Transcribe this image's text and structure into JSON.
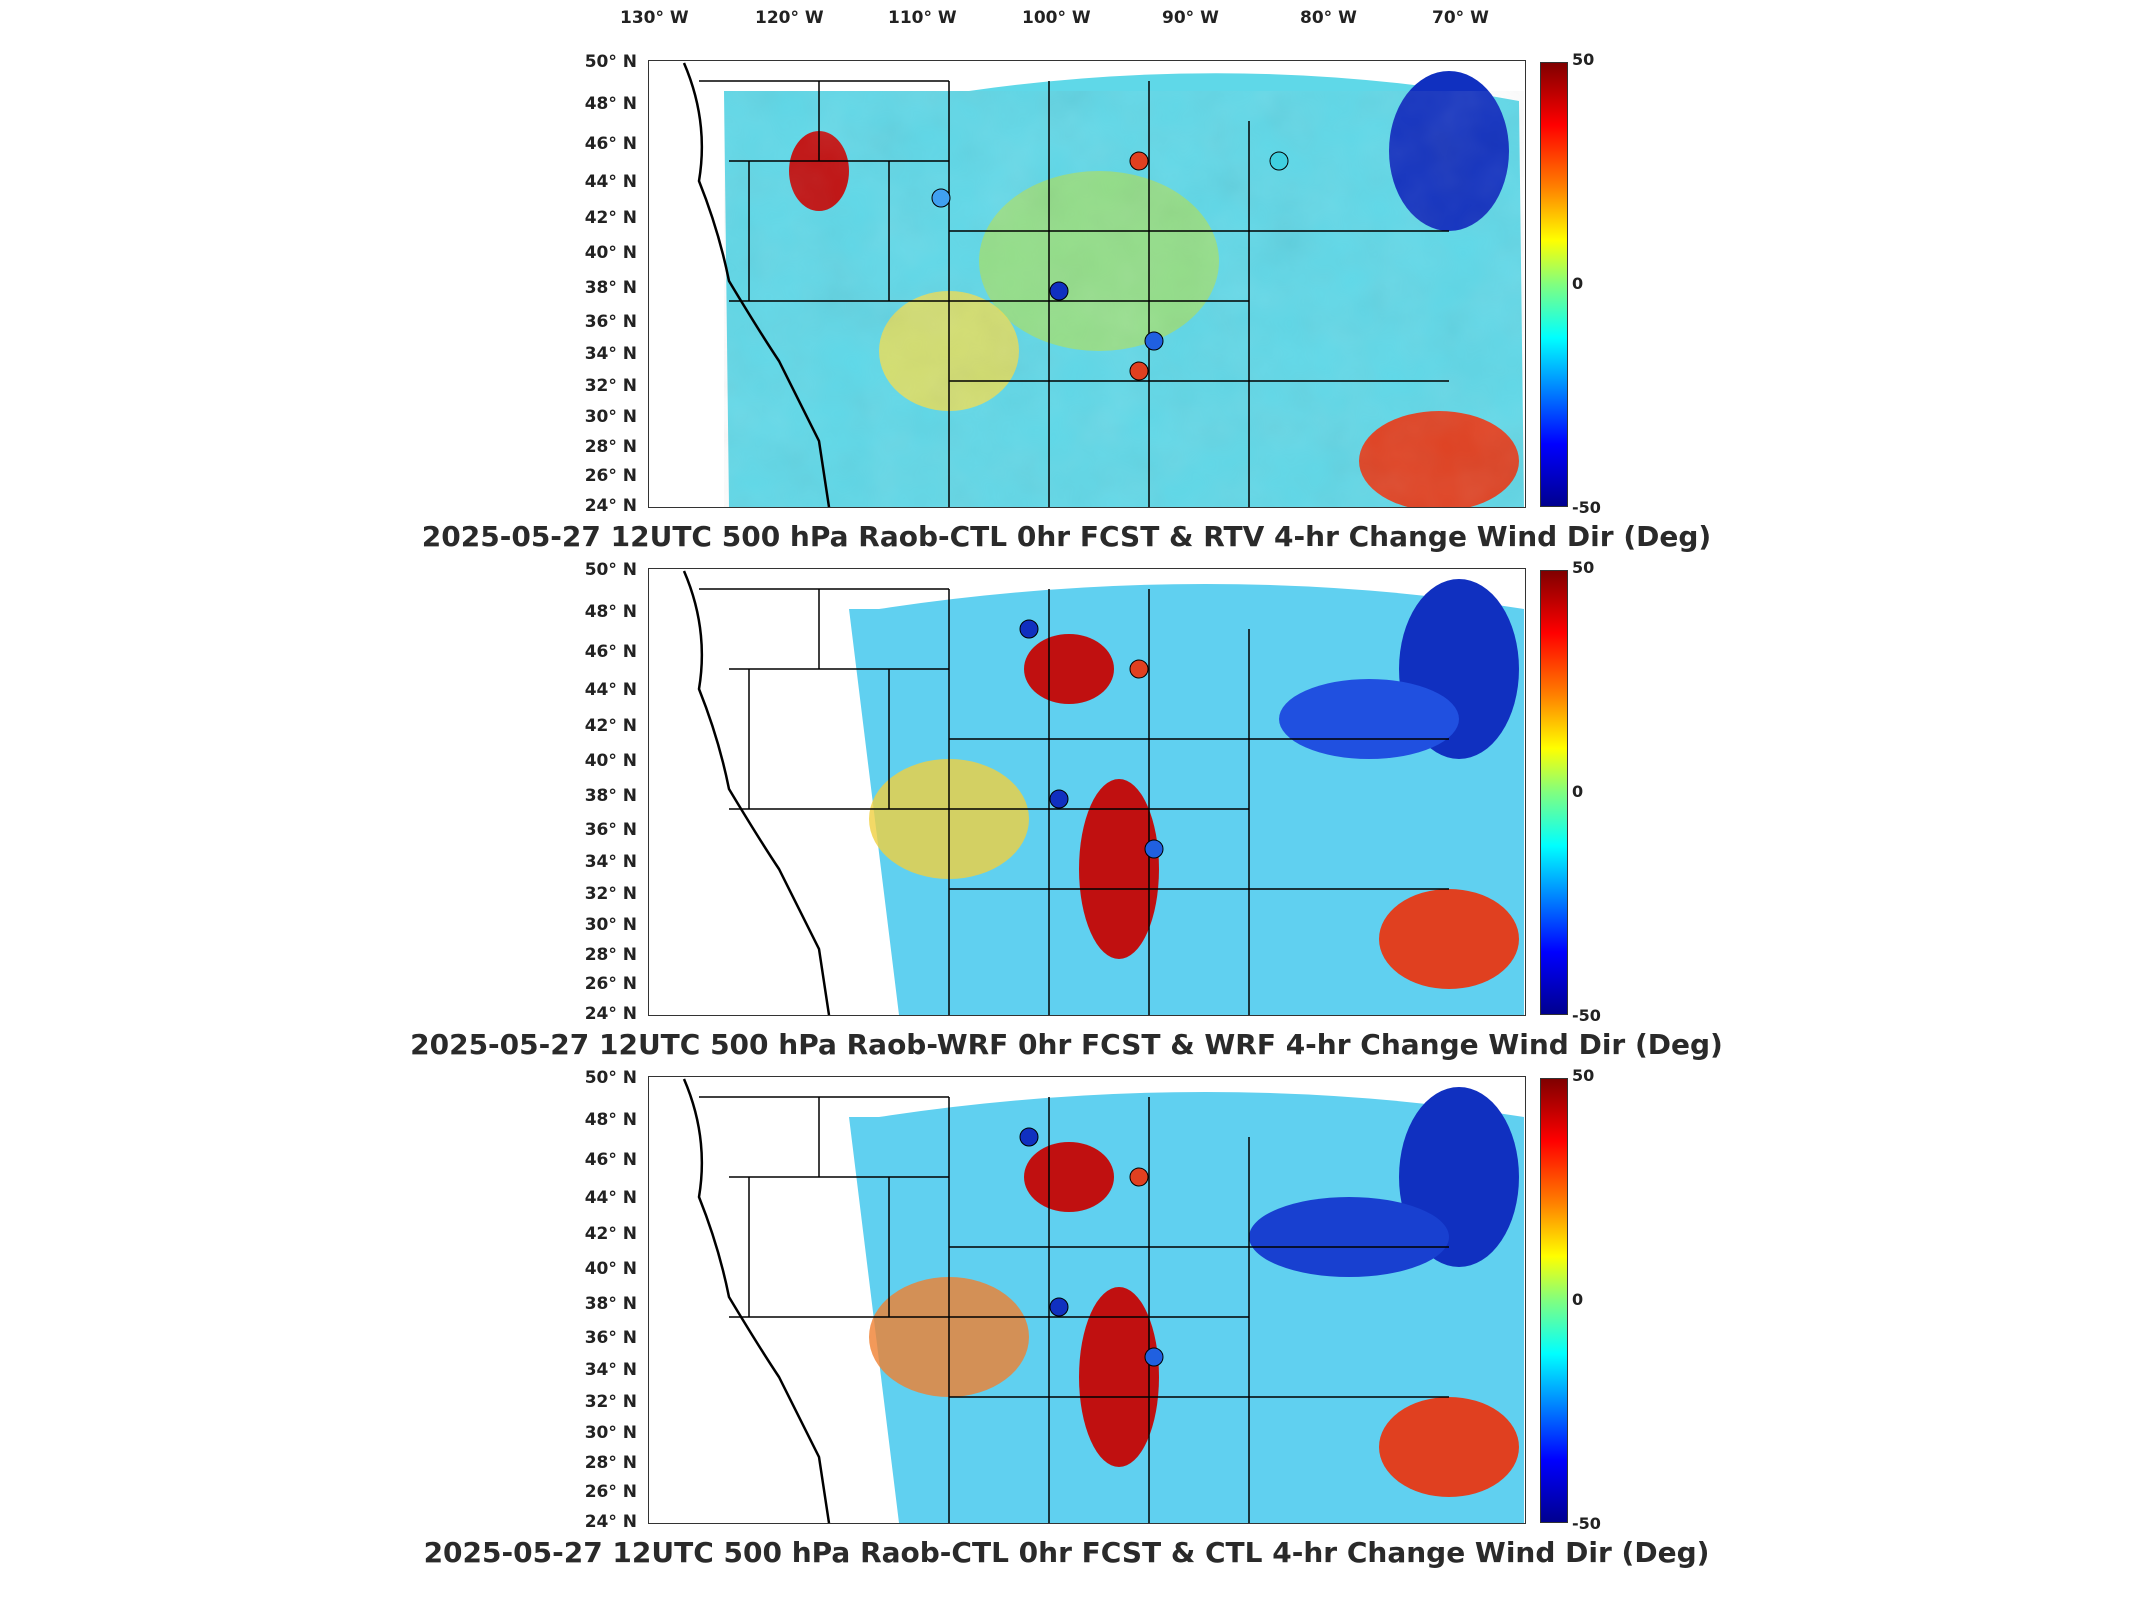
{
  "lon_ticks": [
    "130° W",
    "120° W",
    "110° W",
    "100° W",
    "90° W",
    "80° W",
    "70° W"
  ],
  "lat_ticks": [
    "50° N",
    "48° N",
    "46° N",
    "44° N",
    "42° N",
    "40° N",
    "38° N",
    "36° N",
    "34° N",
    "32° N",
    "30° N",
    "28° N",
    "26° N",
    "24° N"
  ],
  "colorbar": {
    "max": "50",
    "mid": "0",
    "min": "-50"
  },
  "panels": [
    {
      "title": "2025-05-27 12UTC 500 hPa Raob-CTL 0hr FCST & RTV 4-hr Change Wind Dir (Deg)"
    },
    {
      "title": "2025-05-27 12UTC 500 hPa Raob-WRF 0hr FCST & WRF 4-hr Change Wind Dir (Deg)"
    },
    {
      "title": "2025-05-27 12UTC 500 hPa Raob-CTL 0hr FCST & CTL 4-hr Change Wind Dir (Deg)"
    }
  ],
  "colors": {
    "positive_max": "#800000",
    "zero": "#80ff80",
    "negative_max": "#00008f"
  }
}
